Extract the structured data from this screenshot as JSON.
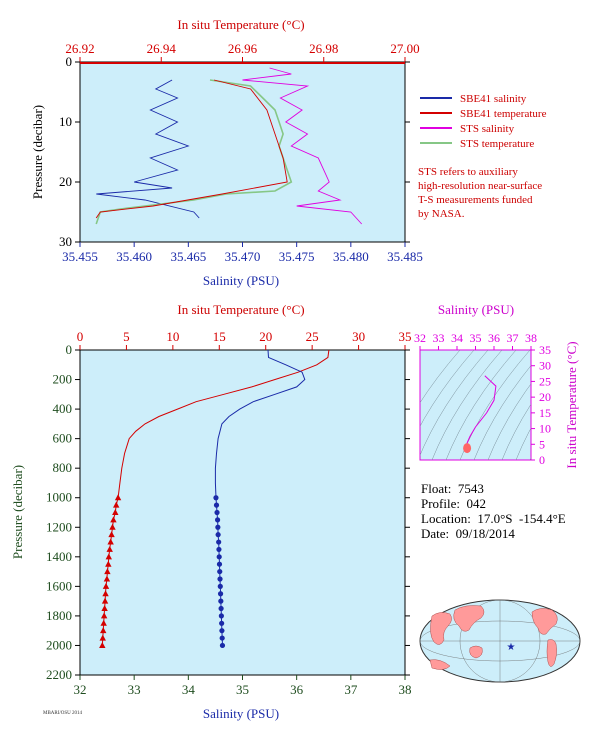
{
  "colors": {
    "plot_bg": "#cdeefa",
    "blue": "#1a2aa8",
    "red": "#d40000",
    "magenta": "#e000e0",
    "green": "#86c786",
    "dark_green": "#1f4d1f",
    "pink_marker": "#ff6666"
  },
  "chart_data": [
    {
      "id": "near-surface",
      "type": "line",
      "title_top_axis": "In situ Temperature (°C)",
      "xlabel": "Salinity (PSU)",
      "ylabel": "Pressure (decibar)",
      "salinity_ticks": [
        "35.455",
        "35.460",
        "35.465",
        "35.470",
        "35.475",
        "35.480",
        "35.485"
      ],
      "temperature_ticks": [
        "26.92",
        "26.94",
        "26.96",
        "26.98",
        "27.00"
      ],
      "pressure_ticks": [
        "0",
        "10",
        "20",
        "30"
      ],
      "xlim_salinity": [
        35.455,
        35.485
      ],
      "xlim_temperature": [
        26.92,
        27.0
      ],
      "ylim": [
        30,
        0
      ],
      "legend": [
        "SBE41 salinity",
        "SBE41 temperature",
        "STS salinity",
        "STS temperature"
      ],
      "note": [
        "STS refers to auxiliary",
        "high-resolution near-surface",
        "T-S measurements funded",
        "by NASA."
      ],
      "series": [
        {
          "name": "SBE41 salinity",
          "unit": "PSU",
          "points": [
            [
              35.4635,
              3
            ],
            [
              35.462,
              4.5
            ],
            [
              35.464,
              6
            ],
            [
              35.4615,
              8
            ],
            [
              35.464,
              10
            ],
            [
              35.462,
              12
            ],
            [
              35.465,
              14
            ],
            [
              35.4615,
              16
            ],
            [
              35.464,
              18
            ],
            [
              35.46,
              20
            ],
            [
              35.4635,
              21
            ],
            [
              35.4565,
              22
            ],
            [
              35.461,
              23
            ],
            [
              35.4655,
              25
            ],
            [
              35.466,
              26
            ]
          ]
        },
        {
          "name": "STS salinity",
          "unit": "PSU",
          "points": [
            [
              35.4725,
              1
            ],
            [
              35.4745,
              2
            ],
            [
              35.47,
              3
            ],
            [
              35.476,
              4
            ],
            [
              35.4735,
              6
            ],
            [
              35.4755,
              8
            ],
            [
              35.474,
              10
            ],
            [
              35.476,
              12
            ],
            [
              35.4745,
              14
            ],
            [
              35.477,
              16
            ],
            [
              35.4775,
              18
            ],
            [
              35.478,
              20
            ],
            [
              35.477,
              21.5
            ],
            [
              35.479,
              23
            ],
            [
              35.475,
              24
            ],
            [
              35.48,
              25
            ],
            [
              35.481,
              27
            ]
          ]
        },
        {
          "name": "STS temperature",
          "unit": "°C",
          "points": [
            [
              26.952,
              3
            ],
            [
              26.962,
              4
            ],
            [
              26.965,
              6
            ],
            [
              26.968,
              8
            ],
            [
              26.969,
              10
            ],
            [
              26.97,
              12
            ],
            [
              26.969,
              14
            ],
            [
              26.97,
              16
            ],
            [
              26.971,
              18
            ],
            [
              26.972,
              20
            ],
            [
              26.968,
              21.5
            ],
            [
              26.956,
              22
            ],
            [
              26.948,
              23
            ],
            [
              26.936,
              24
            ],
            [
              26.93,
              24.5
            ],
            [
              26.925,
              25
            ],
            [
              26.924,
              27
            ]
          ]
        },
        {
          "name": "SBE41 temperature",
          "unit": "°C",
          "points": [
            [
              26.953,
              3
            ],
            [
              26.962,
              4.5
            ],
            [
              26.966,
              8
            ],
            [
              26.968,
              12
            ],
            [
              26.97,
              16
            ],
            [
              26.971,
              20
            ],
            [
              26.955,
              22
            ],
            [
              26.938,
              24
            ],
            [
              26.925,
              25
            ],
            [
              26.924,
              26
            ]
          ]
        }
      ]
    },
    {
      "id": "full-profile",
      "type": "line",
      "title_top_axis": "In situ Temperature (°C)",
      "xlabel": "Salinity (PSU)",
      "ylabel": "Pressure (decibar)",
      "salinity_ticks": [
        "32",
        "33",
        "34",
        "35",
        "36",
        "37",
        "38"
      ],
      "temperature_ticks": [
        "0",
        "5",
        "10",
        "15",
        "20",
        "25",
        "30",
        "35"
      ],
      "pressure_ticks": [
        "0",
        "200",
        "400",
        "600",
        "800",
        "1000",
        "1200",
        "1400",
        "1600",
        "1800",
        "2000",
        "2200"
      ],
      "xlim_salinity": [
        32,
        38
      ],
      "xlim_temperature": [
        0,
        35
      ],
      "ylim": [
        2200,
        0
      ],
      "series": [
        {
          "name": "Temperature",
          "unit": "°C",
          "points": [
            [
              26.8,
              0
            ],
            [
              26.7,
              50
            ],
            [
              25.5,
              100
            ],
            [
              23.5,
              150
            ],
            [
              21.0,
              200
            ],
            [
              18.5,
              250
            ],
            [
              15.5,
              300
            ],
            [
              12.5,
              350
            ],
            [
              10.5,
              400
            ],
            [
              8.5,
              450
            ],
            [
              7.0,
              500
            ],
            [
              6.0,
              550
            ],
            [
              5.3,
              600
            ],
            [
              4.8,
              700
            ],
            [
              4.5,
              800
            ],
            [
              4.3,
              900
            ],
            [
              4.1,
              1000
            ],
            [
              3.9,
              1050
            ],
            [
              3.8,
              1100
            ],
            [
              3.6,
              1150
            ],
            [
              3.5,
              1200
            ],
            [
              3.4,
              1250
            ],
            [
              3.3,
              1300
            ],
            [
              3.2,
              1350
            ],
            [
              3.1,
              1400
            ],
            [
              3.05,
              1450
            ],
            [
              2.95,
              1500
            ],
            [
              2.9,
              1550
            ],
            [
              2.8,
              1600
            ],
            [
              2.75,
              1650
            ],
            [
              2.7,
              1700
            ],
            [
              2.65,
              1750
            ],
            [
              2.6,
              1800
            ],
            [
              2.55,
              1850
            ],
            [
              2.5,
              1900
            ],
            [
              2.45,
              1950
            ],
            [
              2.4,
              2000
            ]
          ]
        },
        {
          "name": "Salinity",
          "unit": "PSU",
          "points": [
            [
              35.47,
              0
            ],
            [
              35.48,
              50
            ],
            [
              35.8,
              100
            ],
            [
              36.1,
              150
            ],
            [
              36.15,
              200
            ],
            [
              36.0,
              250
            ],
            [
              35.6,
              300
            ],
            [
              35.2,
              350
            ],
            [
              34.95,
              400
            ],
            [
              34.75,
              450
            ],
            [
              34.62,
              500
            ],
            [
              34.55,
              600
            ],
            [
              34.52,
              700
            ],
            [
              34.5,
              800
            ],
            [
              34.5,
              900
            ],
            [
              34.51,
              1000
            ],
            [
              34.52,
              1050
            ],
            [
              34.53,
              1100
            ],
            [
              34.54,
              1150
            ],
            [
              34.545,
              1200
            ],
            [
              34.55,
              1250
            ],
            [
              34.56,
              1300
            ],
            [
              34.565,
              1350
            ],
            [
              34.57,
              1400
            ],
            [
              34.575,
              1450
            ],
            [
              34.58,
              1500
            ],
            [
              34.585,
              1550
            ],
            [
              34.59,
              1600
            ],
            [
              34.595,
              1650
            ],
            [
              34.6,
              1700
            ],
            [
              34.605,
              1750
            ],
            [
              34.61,
              1800
            ],
            [
              34.615,
              1850
            ],
            [
              34.62,
              1900
            ],
            [
              34.625,
              1950
            ],
            [
              34.63,
              2000
            ]
          ]
        }
      ]
    },
    {
      "id": "ts-diagram",
      "type": "line",
      "title_top_axis": "Salinity (PSU)",
      "ylabel": "In situ Temperature (°C)",
      "salinity_ticks": [
        "32",
        "33",
        "34",
        "35",
        "36",
        "37",
        "38"
      ],
      "temperature_ticks": [
        "0",
        "5",
        "10",
        "15",
        "20",
        "25",
        "30",
        "35"
      ],
      "xlim": [
        32,
        38
      ],
      "ylim": [
        0,
        35
      ],
      "series": [
        {
          "name": "T-S",
          "points": [
            [
              35.5,
              26.8
            ],
            [
              36.1,
              23.5
            ],
            [
              36.0,
              19.0
            ],
            [
              35.6,
              15.0
            ],
            [
              35.0,
              10.5
            ],
            [
              34.7,
              7.5
            ],
            [
              34.55,
              5.5
            ],
            [
              34.52,
              4.5
            ],
            [
              34.55,
              3.5
            ],
            [
              34.6,
              2.5
            ]
          ]
        }
      ]
    }
  ],
  "info": {
    "float": "Float:  7543",
    "profile": "Profile:  042",
    "location": "Location:  17.0°S  -154.4°E",
    "date": "Date:  09/18/2014"
  },
  "map": {
    "marker_icon": "star-marker"
  },
  "footer_tiny": "MBARI/OSU 2014"
}
